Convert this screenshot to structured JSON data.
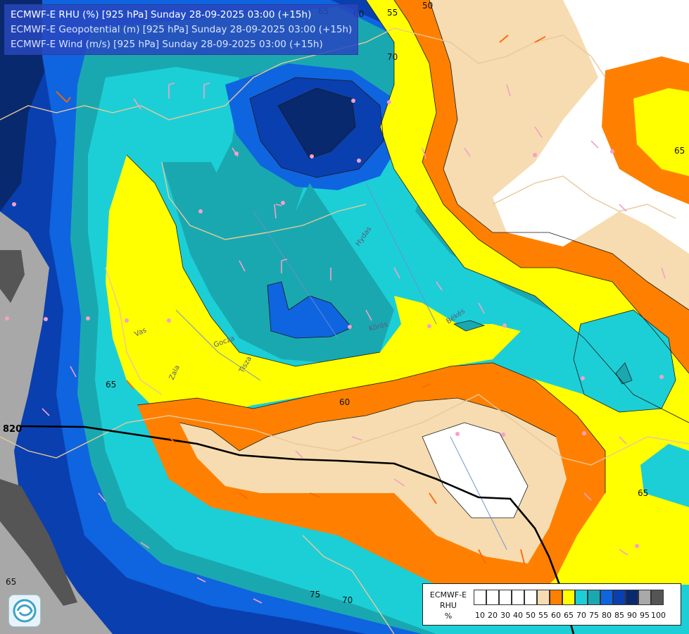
{
  "titles": [
    "ECMWF-E RHU (%) [925 hPa] Sunday 28-09-2025 03:00 (+15h)",
    "ECMWF-E Geopotential (m) [925 hPa] Sunday 28-09-2025 03:00 (+15h)",
    "ECMWF-E Wind (m/s) [925 hPa] Sunday 28-09-2025 03:00 (+15h)"
  ],
  "legend": {
    "title_lines": [
      "ECMWF-E",
      "RHU",
      "%"
    ],
    "levels": [
      "10",
      "20",
      "30",
      "40",
      "50",
      "55",
      "60",
      "65",
      "70",
      "75",
      "80",
      "85",
      "90",
      "95",
      "100"
    ],
    "colors": [
      "#ffffff",
      "#ffffff",
      "#ffffff",
      "#ffffff",
      "#ffffff",
      "#f6dcb0",
      "#ff8000",
      "#ffff00",
      "#1ccfd6",
      "#1aa8b0",
      "#0f64e0",
      "#0a3fb0",
      "#08296e",
      "#a8a8a8",
      "#555555"
    ]
  },
  "contour_labels": {
    "rhu": [
      "65",
      "60",
      "55",
      "50",
      "70",
      "65",
      "75",
      "70",
      "65",
      "60",
      "65",
      "65"
    ],
    "geopotential": [
      "820"
    ]
  },
  "place_labels": [
    "Hydas",
    "Vas",
    "Zala",
    "Gocza",
    "Tisza",
    "Körös",
    "Békés"
  ],
  "colors": {
    "white_zone": "#ffffff",
    "tan_55": "#f6dcb0",
    "orange_60": "#ff8000",
    "yellow_65": "#ffff00",
    "cyan_70": "#1ccfd6",
    "teal_75": "#1aa8b0",
    "blue_80": "#0f64e0",
    "blue_85": "#0a3fb0",
    "navy_90": "#08296e",
    "gray_95": "#a8a8a8",
    "dark_100": "#555555"
  }
}
